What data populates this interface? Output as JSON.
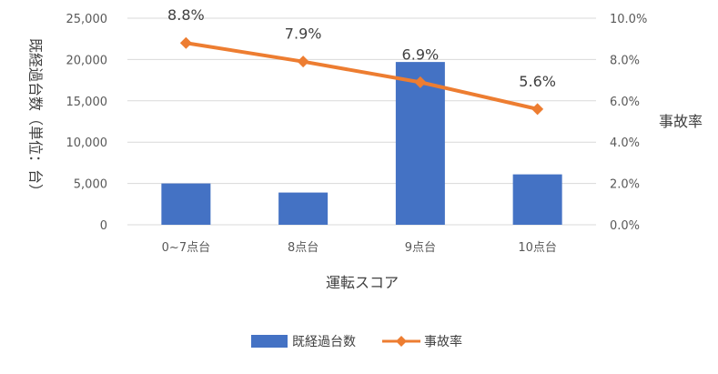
{
  "chart_data": {
    "type": "bar",
    "categories": [
      "0~7点台",
      "8点台",
      "9点台",
      "10点台"
    ],
    "xlabel": "運転スコア",
    "ylabel": "既経過台数（単位：台）",
    "y2label": "事故率",
    "ylim": [
      0,
      25000
    ],
    "y2lim": [
      0,
      0.1
    ],
    "yticks": [
      "0",
      "5,000",
      "10,000",
      "15,000",
      "20,000",
      "25,000"
    ],
    "y2ticks": [
      "0.0%",
      "2.0%",
      "4.0%",
      "6.0%",
      "8.0%",
      "10.0%"
    ],
    "grid": true,
    "legend_position": "bottom",
    "series": [
      {
        "name": "既経過台数",
        "type": "bar",
        "axis": "left",
        "color": "#4472C4",
        "values": [
          5000,
          3900,
          19700,
          6100
        ]
      },
      {
        "name": "事故率",
        "type": "line",
        "axis": "right",
        "color": "#ED7D31",
        "values": [
          0.088,
          0.079,
          0.069,
          0.056
        ],
        "labels": [
          "8.8%",
          "7.9%",
          "6.9%",
          "5.6%"
        ]
      }
    ]
  }
}
